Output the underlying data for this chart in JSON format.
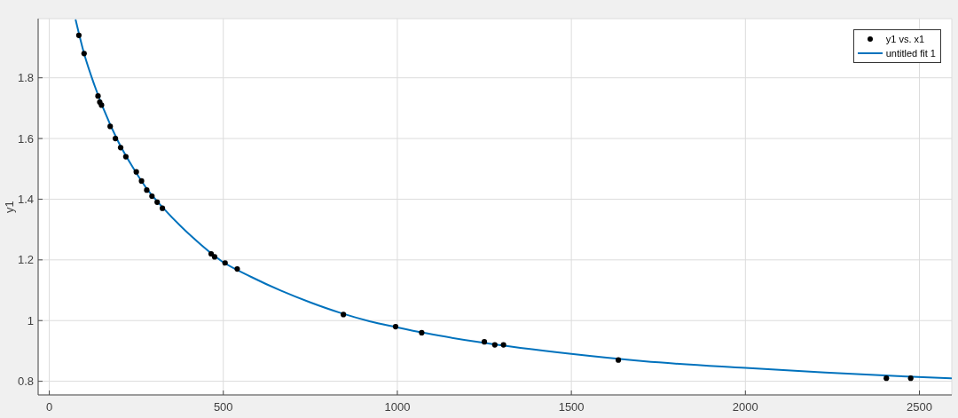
{
  "chart_data": {
    "type": "scatter",
    "ylabel": "y1",
    "xlim": [
      -32,
      2593
    ],
    "ylim": [
      0.755,
      1.995
    ],
    "xticks": [
      0,
      500,
      1000,
      1500,
      2000,
      2500
    ],
    "yticks": [
      0.8,
      1,
      1.2,
      1.4,
      1.6,
      1.8
    ],
    "grid": true,
    "legend": "top right",
    "series": [
      {
        "name": "y1 vs. x1",
        "color": "#000000",
        "marker": "circle",
        "x": [
          85,
          100,
          140,
          145,
          150,
          175,
          190,
          205,
          220,
          250,
          265,
          280,
          295,
          310,
          325,
          465,
          475,
          505,
          540,
          845,
          995,
          1070,
          1250,
          1280,
          1305,
          1635,
          2405,
          2475
        ],
        "values": [
          1.94,
          1.88,
          1.74,
          1.72,
          1.71,
          1.64,
          1.6,
          1.57,
          1.54,
          1.49,
          1.46,
          1.43,
          1.41,
          1.39,
          1.37,
          1.22,
          1.21,
          1.19,
          1.17,
          1.02,
          0.98,
          0.96,
          0.93,
          0.92,
          0.92,
          0.87,
          0.81,
          0.81
        ]
      },
      {
        "name": "untitled fit 1",
        "type": "line",
        "color": "#0072bd",
        "marker": "none",
        "line_style": "solid",
        "x": [
          76,
          100,
          130,
          155,
          198,
          240,
          283,
          325,
          410,
          495,
          580,
          665,
          750,
          835,
          920,
          995,
          1084,
          1240,
          1500,
          1708,
          2000,
          2229,
          2437,
          2591
        ],
        "values": [
          1.99,
          1.88,
          1.775,
          1.7,
          1.59,
          1.505,
          1.43,
          1.374,
          1.276,
          1.196,
          1.144,
          1.099,
          1.06,
          1.026,
          0.998,
          0.979,
          0.958,
          0.928,
          0.89,
          0.866,
          0.844,
          0.829,
          0.817,
          0.81
        ]
      }
    ]
  }
}
